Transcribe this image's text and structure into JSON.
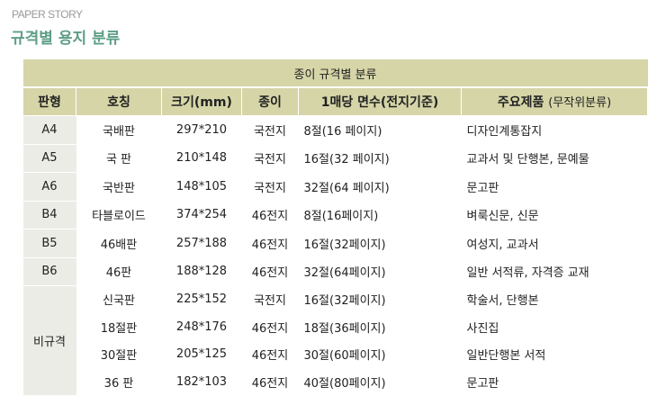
{
  "header": {
    "brand": "PAPER STORY",
    "title": "규격별 용지 분류"
  },
  "table": {
    "caption": "종이 규격별 분류",
    "columns": [
      "판형",
      "호칭",
      "크기(mm)",
      "종이",
      "1매당 면수(전지기준)",
      "주요제품"
    ],
    "columns_sub": "(무작위분류)",
    "rows": [
      {
        "type": "A4",
        "name": "국배판",
        "size": "297*210",
        "paper": "국전지",
        "pages": "8절(16 페이지)",
        "products": "디자인계통잡지"
      },
      {
        "type": "A5",
        "name": "국 판",
        "size": "210*148",
        "paper": "국전지",
        "pages": "16절(32 페이지)",
        "products": "교과서 및 단행본, 문예물"
      },
      {
        "type": "A6",
        "name": "국반판",
        "size": "148*105",
        "paper": "국전지",
        "pages": "32절(64 페이지)",
        "products": "문고판"
      },
      {
        "type": "B4",
        "name": "타블로이드",
        "size": "374*254",
        "paper": "46전지",
        "pages": "8절(16페이지)",
        "products": "벼룩신문, 신문"
      },
      {
        "type": "B5",
        "name": "46배판",
        "size": "257*188",
        "paper": "46전지",
        "pages": "16절(32페이지)",
        "products": "여성지, 교과서"
      },
      {
        "type": "B6",
        "name": "46판",
        "size": "188*128",
        "paper": "46전지",
        "pages": "32절(64페이지)",
        "products": "일반 서적류, 자격증 교재"
      },
      {
        "type": "비규격",
        "name": "신국판",
        "size": "225*152",
        "paper": "국전지",
        "pages": "16절(32페이지)",
        "products": "학술서, 단행본"
      },
      {
        "type": "",
        "name": "18절판",
        "size": "248*176",
        "paper": "46전지",
        "pages": "18절(36페이지)",
        "products": "사진집"
      },
      {
        "type": "",
        "name": "30절판",
        "size": "205*125",
        "paper": "46전지",
        "pages": "30절(60페이지)",
        "products": "일반단행본 서적"
      },
      {
        "type": "",
        "name": "36 판",
        "size": "182*103",
        "paper": "46전지",
        "pages": "40절(80페이지)",
        "products": "문고판"
      }
    ]
  }
}
